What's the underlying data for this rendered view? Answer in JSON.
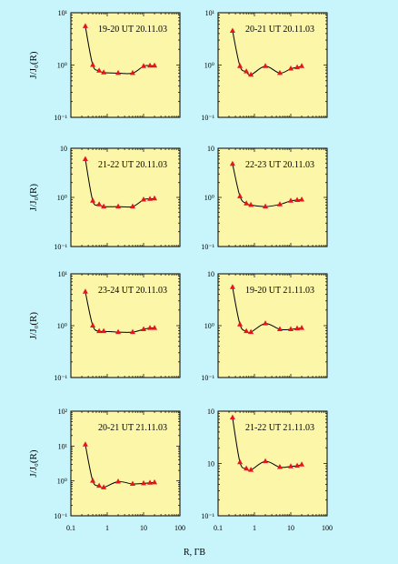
{
  "chart_data": [
    {
      "type": "line",
      "title": "19-20 UT 20.11.03",
      "yticklabels": [
        "10¹",
        "10⁰",
        "10⁻¹"
      ],
      "x": [
        0.25,
        0.4,
        0.6,
        0.8,
        2.0,
        5.0,
        10.0,
        15.0,
        20.0
      ],
      "values": [
        5.5,
        1.0,
        0.78,
        0.72,
        0.7,
        0.7,
        0.95,
        0.97,
        0.97
      ]
    },
    {
      "type": "line",
      "title": "20-21 UT 20.11.03",
      "yticklabels": [
        "10¹",
        "10⁰",
        "10⁻¹"
      ],
      "x": [
        0.25,
        0.4,
        0.6,
        0.8,
        2.0,
        5.0,
        10.0,
        15.0,
        20.0
      ],
      "values": [
        4.5,
        0.95,
        0.75,
        0.65,
        0.95,
        0.7,
        0.85,
        0.9,
        0.95
      ]
    },
    {
      "type": "line",
      "title": "21-22 UT 20.11.03",
      "yticklabels": [
        "10",
        "10⁰",
        "10⁻¹"
      ],
      "x": [
        0.25,
        0.4,
        0.6,
        0.8,
        2.0,
        5.0,
        10.0,
        15.0,
        20.0
      ],
      "values": [
        6.0,
        0.85,
        0.72,
        0.65,
        0.65,
        0.65,
        0.9,
        0.93,
        0.95
      ]
    },
    {
      "type": "line",
      "title": "22-23 UT 20.11.03",
      "yticklabels": [
        "10",
        "10⁰",
        "10⁻¹"
      ],
      "x": [
        0.25,
        0.4,
        0.6,
        0.8,
        2.0,
        5.0,
        10.0,
        15.0,
        20.0
      ],
      "values": [
        4.8,
        1.05,
        0.75,
        0.7,
        0.65,
        0.72,
        0.85,
        0.88,
        0.9
      ]
    },
    {
      "type": "line",
      "title": "23-24 UT 20.11.03",
      "yticklabels": [
        "10¹",
        "10⁰",
        "10⁻¹"
      ],
      "x": [
        0.25,
        0.4,
        0.6,
        0.8,
        2.0,
        5.0,
        10.0,
        15.0,
        20.0
      ],
      "values": [
        4.5,
        1.0,
        0.78,
        0.78,
        0.75,
        0.75,
        0.85,
        0.9,
        0.9
      ]
    },
    {
      "type": "line",
      "title": "19-20 UT 21.11.03",
      "yticklabels": [
        "10",
        "10⁰",
        "10⁻¹"
      ],
      "x": [
        0.25,
        0.4,
        0.6,
        0.8,
        2.0,
        5.0,
        10.0,
        15.0,
        20.0
      ],
      "values": [
        5.5,
        1.05,
        0.78,
        0.75,
        1.1,
        0.85,
        0.85,
        0.88,
        0.9
      ]
    },
    {
      "type": "line",
      "title": "20-21 UT 21.11.03",
      "yticklabels": [
        "10²",
        "10¹",
        "10⁰",
        "10⁻¹"
      ],
      "x": [
        0.25,
        0.4,
        0.6,
        0.8,
        2.0,
        5.0,
        10.0,
        15.0,
        20.0
      ],
      "values": [
        11.0,
        1.0,
        0.72,
        0.65,
        0.95,
        0.82,
        0.85,
        0.88,
        0.9
      ]
    },
    {
      "type": "line",
      "title": "21-22 UT 21.11.03",
      "yticklabels": [
        "10",
        "10",
        "10⁻¹"
      ],
      "x": [
        0.25,
        0.4,
        0.6,
        0.8,
        2.0,
        5.0,
        10.0,
        15.0,
        20.0
      ],
      "values": [
        7.5,
        1.05,
        0.8,
        0.75,
        1.1,
        0.85,
        0.88,
        0.9,
        0.95
      ]
    }
  ],
  "shared": {
    "ylabel": "J/J₀(R)",
    "xlabel": "R, ГВ",
    "xticklabels": [
      "0.1",
      "1",
      "10",
      "100"
    ],
    "xlim": [
      0.1,
      100
    ],
    "panel_color": "#fbf6a8",
    "marker_color": "#e8141c",
    "line_color": "#000000"
  }
}
